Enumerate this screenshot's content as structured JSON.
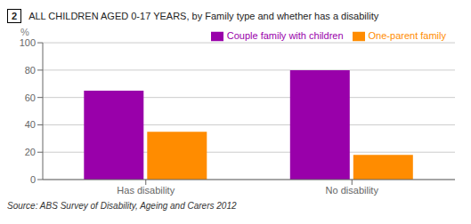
{
  "chart_data": {
    "type": "bar",
    "title": "ALL CHILDREN AGED 0-17 YEARS, by Family type and whether has a disability",
    "annotations": [
      "2",
      "Source: ABS Survey of Disability, Ageing and Carers 2012"
    ],
    "categories": [
      "Has disability",
      "No disability"
    ],
    "series": [
      {
        "name": "Couple family with children",
        "values": [
          65,
          80
        ],
        "color": "#9900AA"
      },
      {
        "name": "One-parent family",
        "values": [
          35,
          18
        ],
        "color": "#FF8C00"
      }
    ],
    "ylabel": "%",
    "ylim": [
      0,
      100
    ],
    "yticks": [
      0,
      20,
      40,
      60,
      80,
      100
    ],
    "grid": true,
    "legend": "upper right"
  }
}
